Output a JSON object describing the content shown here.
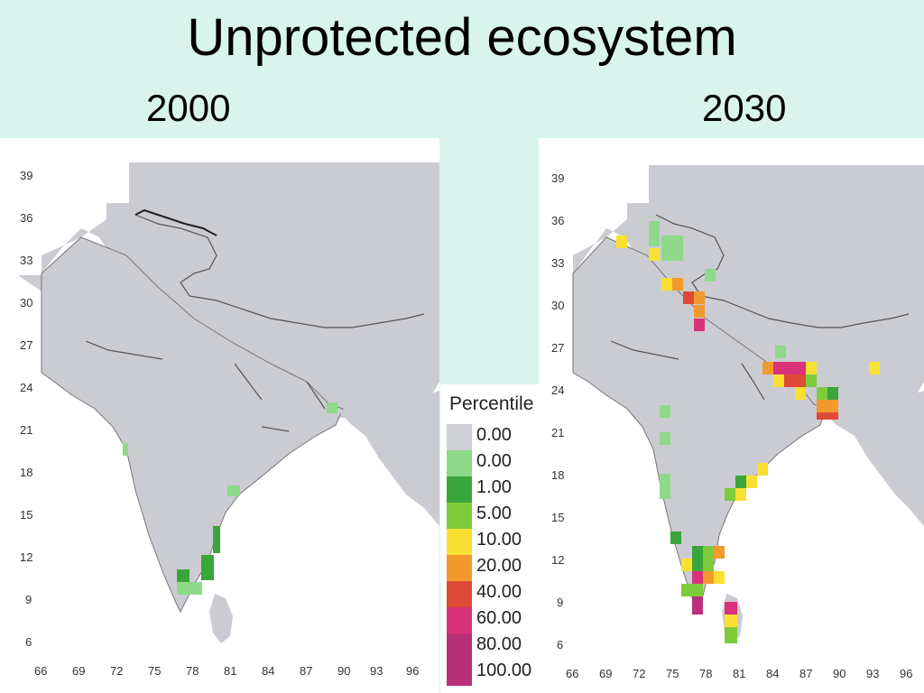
{
  "title": "Unprotected ecosystem",
  "years": {
    "left": "2000",
    "right": "2030"
  },
  "axes": {
    "y_ticks": [
      "39",
      "36",
      "33",
      "30",
      "27",
      "24",
      "21",
      "18",
      "15",
      "12",
      "9",
      "6"
    ],
    "x_ticks": [
      "66",
      "69",
      "72",
      "75",
      "78",
      "81",
      "84",
      "87",
      "90",
      "93",
      "96"
    ],
    "lat_range": [
      6,
      39
    ],
    "lon_range": [
      66,
      96
    ]
  },
  "legend": {
    "title": "Percentile",
    "items": [
      {
        "label": "0.00",
        "color": "#cfcfd6"
      },
      {
        "label": "0.00",
        "color": "#8fd98a"
      },
      {
        "label": "1.00",
        "color": "#3aa53a"
      },
      {
        "label": "5.00",
        "color": "#7ccc3c"
      },
      {
        "label": "10.00",
        "color": "#f9e032"
      },
      {
        "label": "20.00",
        "color": "#f39a2f"
      },
      {
        "label": "40.00",
        "color": "#df4a36"
      },
      {
        "label": "60.00",
        "color": "#d8327a"
      },
      {
        "label": "80.00",
        "color": "#b8307a"
      },
      {
        "label": "100.00",
        "color": "#b8307a"
      }
    ]
  },
  "map_colors": {
    "land": "#cbcbd2",
    "water": "#ffffff",
    "border": "#555555"
  }
}
